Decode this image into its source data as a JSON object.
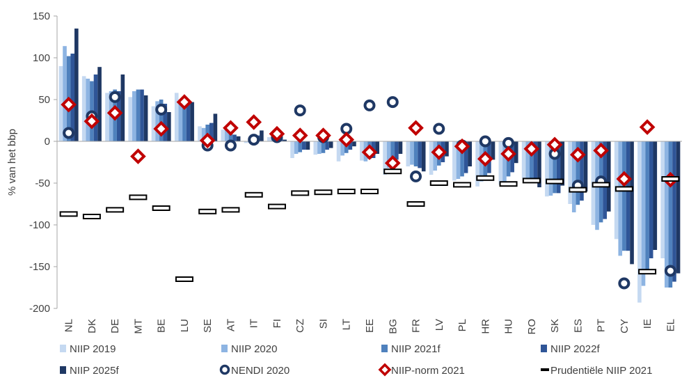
{
  "chart_data": {
    "type": "bar",
    "ylabel": "% van het bbp",
    "ylim": [
      -200,
      150
    ],
    "yticks": [
      -200,
      -150,
      -100,
      -50,
      0,
      50,
      100,
      150
    ],
    "grid": false,
    "legend_position": "bottom",
    "categories": [
      "NL",
      "DK",
      "DE",
      "MT",
      "BE",
      "LU",
      "SE",
      "AT",
      "IT",
      "FI",
      "CZ",
      "SI",
      "LT",
      "EE",
      "BG",
      "FR",
      "LV",
      "PL",
      "HR",
      "HU",
      "RO",
      "SK",
      "ES",
      "PT",
      "CY",
      "IE",
      "EL"
    ],
    "series": [
      {
        "name": "NIIP 2019",
        "kind": "bar",
        "color": "#c5d9f1",
        "values": [
          90,
          78,
          58,
          53,
          42,
          58,
          18,
          14,
          -2,
          5,
          -20,
          -16,
          -24,
          -23,
          -40,
          -30,
          -40,
          -47,
          -54,
          -52,
          -44,
          -66,
          -75,
          -100,
          -117,
          -193,
          -140
        ]
      },
      {
        "name": "NIIP 2020",
        "kind": "bar",
        "color": "#8db4e2",
        "values": [
          114,
          75,
          60,
          60,
          48,
          50,
          16,
          17,
          -1,
          6,
          -15,
          -15,
          -17,
          -24,
          -32,
          -28,
          -35,
          -45,
          -48,
          -48,
          -45,
          -65,
          -85,
          -106,
          -137,
          -173,
          -175
        ]
      },
      {
        "name": "NIIP 2021f",
        "kind": "bar",
        "color": "#4f81bd",
        "values": [
          102,
          72,
          62,
          62,
          50,
          48,
          20,
          14,
          0,
          6,
          -13,
          -14,
          -14,
          -21,
          -27,
          -30,
          -29,
          -42,
          -43,
          -42,
          -44,
          -62,
          -76,
          -97,
          -131,
          -157,
          -175
        ]
      },
      {
        "name": "NIIP 2022f",
        "kind": "bar",
        "color": "#2f5597",
        "values": [
          105,
          80,
          60,
          62,
          45,
          48,
          22,
          8,
          7,
          5,
          -10,
          -10,
          -10,
          -20,
          -22,
          -32,
          -25,
          -38,
          -38,
          -37,
          -47,
          -62,
          -71,
          -93,
          -131,
          -140,
          -168
        ]
      },
      {
        "name": "NIIP 2025f",
        "kind": "bar",
        "color": "#1f3864",
        "values": [
          135,
          89,
          80,
          55,
          35,
          47,
          33,
          6,
          13,
          2,
          -10,
          -8,
          -6,
          -15,
          -15,
          -36,
          -18,
          -30,
          -22,
          -26,
          -55,
          -53,
          -60,
          -84,
          -147,
          -130,
          -158
        ]
      },
      {
        "name": "NENDI 2020",
        "kind": "circle",
        "color": "#1f3864",
        "values": [
          10,
          30,
          53,
          null,
          38,
          null,
          -5,
          -5,
          2,
          5,
          37,
          5,
          15,
          43,
          47,
          -42,
          15,
          -5,
          0,
          -2,
          null,
          -15,
          -53,
          -48,
          -170,
          null,
          -155
        ]
      },
      {
        "name": "NIIP-norm 2021",
        "kind": "diamond",
        "color": "#c00000",
        "values": [
          44,
          24,
          34,
          -18,
          15,
          47,
          1,
          16,
          23,
          9,
          7,
          7,
          2,
          -13,
          -26,
          16,
          -13,
          -6,
          -21,
          -15,
          -9,
          -4,
          -16,
          -11,
          -45,
          17,
          -46
        ]
      },
      {
        "name": "Prudentiële NIIP 2021",
        "kind": "dash",
        "color": "#000000",
        "values": [
          -87,
          -90,
          -82,
          -67,
          -80,
          -165,
          -84,
          -82,
          -64,
          -78,
          -62,
          -61,
          -60,
          -60,
          -36,
          -75,
          -50,
          -52,
          -44,
          -51,
          -47,
          -48,
          -58,
          -52,
          -57,
          -156,
          -45
        ]
      }
    ]
  }
}
